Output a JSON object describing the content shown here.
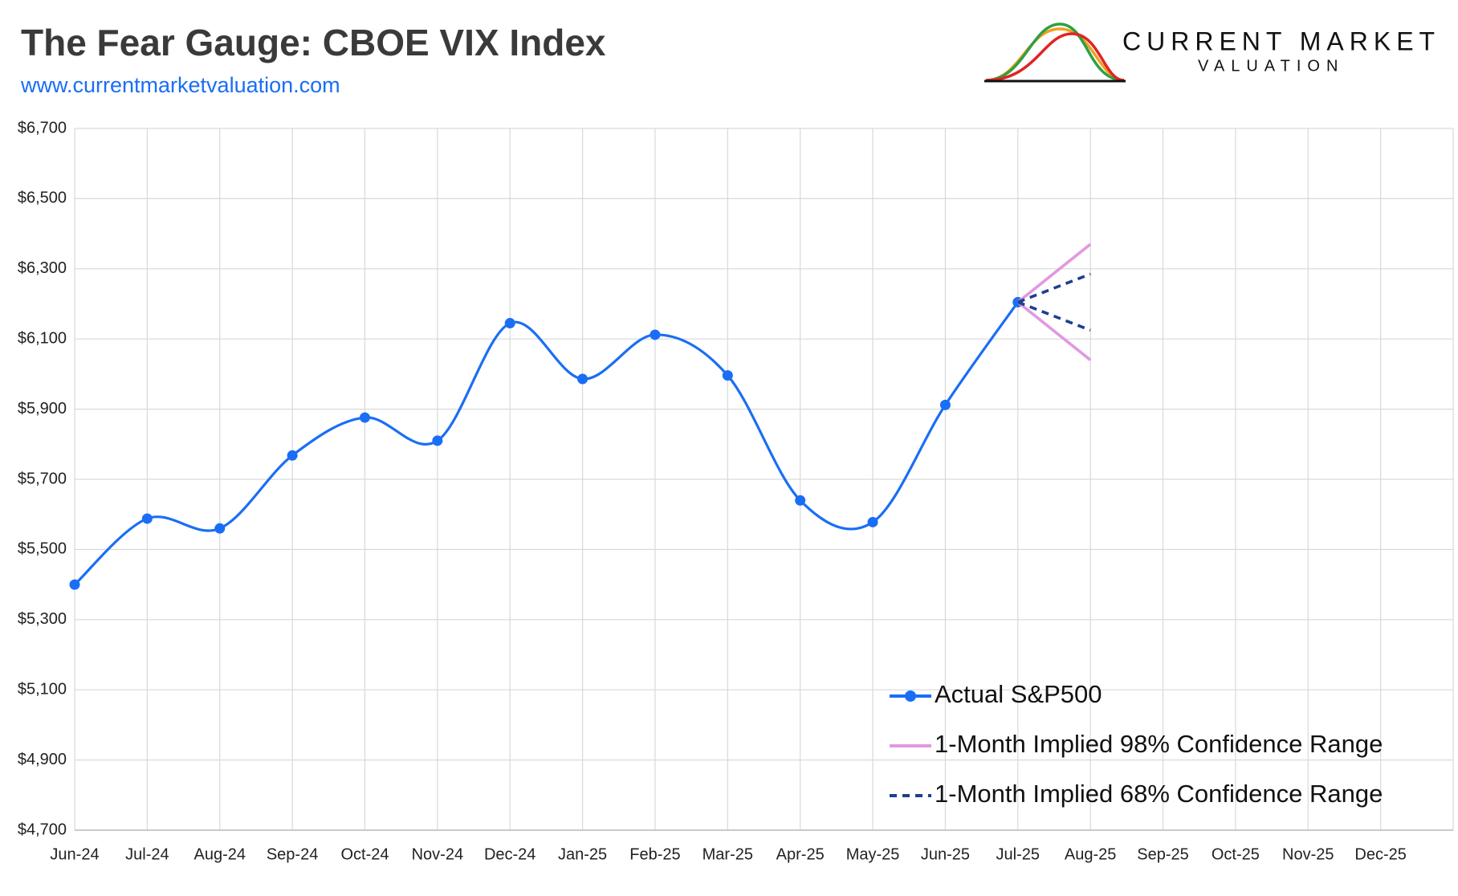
{
  "chart_data": {
    "type": "line",
    "title": "The Fear Gauge: CBOE VIX Index",
    "subtitle": "www.currentmarketvaluation.com",
    "logo": {
      "line1": "CURRENT MARKET",
      "line2": "VALUATION"
    },
    "categories": [
      "Jun-24",
      "Jul-24",
      "Aug-24",
      "Sep-24",
      "Oct-24",
      "Nov-24",
      "Dec-24",
      "Jan-25",
      "Feb-25",
      "Mar-25",
      "Apr-25",
      "May-25",
      "Jun-25",
      "Jul-25",
      "Aug-25",
      "Sep-25",
      "Oct-25",
      "Nov-25",
      "Dec-25"
    ],
    "series": [
      {
        "name": "Actual S&P500",
        "color": "#1a6ef5",
        "style": "smooth-markers",
        "values": [
          5400,
          5588,
          5560,
          5768,
          5876,
          5810,
          6145,
          5986,
          6112,
          5996,
          5640,
          5578,
          5912,
          6205,
          null,
          null,
          null,
          null,
          null
        ]
      },
      {
        "name": "1-Month Implied 98% Confidence Range",
        "color": "#e199e0",
        "style": "solid",
        "high": [
          null,
          null,
          null,
          null,
          null,
          null,
          null,
          null,
          null,
          null,
          null,
          null,
          null,
          6205,
          6370,
          null,
          null,
          null,
          null
        ],
        "low": [
          null,
          null,
          null,
          null,
          null,
          null,
          null,
          null,
          null,
          null,
          null,
          null,
          null,
          6205,
          6040,
          null,
          null,
          null,
          null
        ]
      },
      {
        "name": "1-Month Implied 68% Confidence Range",
        "color": "#1f3f8f",
        "style": "dashed",
        "high": [
          null,
          null,
          null,
          null,
          null,
          null,
          null,
          null,
          null,
          null,
          null,
          null,
          null,
          6205,
          6285,
          null,
          null,
          null,
          null
        ],
        "low": [
          null,
          null,
          null,
          null,
          null,
          null,
          null,
          null,
          null,
          null,
          null,
          null,
          null,
          6205,
          6125,
          null,
          null,
          null,
          null
        ]
      }
    ],
    "ylim": [
      4700,
      6700
    ],
    "yticks": [
      {
        "value": 4700,
        "label": "$4,700"
      },
      {
        "value": 4900,
        "label": "$4,900"
      },
      {
        "value": 5100,
        "label": "$5,100"
      },
      {
        "value": 5300,
        "label": "$5,300"
      },
      {
        "value": 5500,
        "label": "$5,500"
      },
      {
        "value": 5700,
        "label": "$5,700"
      },
      {
        "value": 5900,
        "label": "$5,900"
      },
      {
        "value": 6100,
        "label": "$6,100"
      },
      {
        "value": 6300,
        "label": "$6,300"
      },
      {
        "value": 6500,
        "label": "$6,500"
      },
      {
        "value": 6700,
        "label": "$6,700"
      }
    ],
    "grid": true,
    "legend": "lower right"
  }
}
